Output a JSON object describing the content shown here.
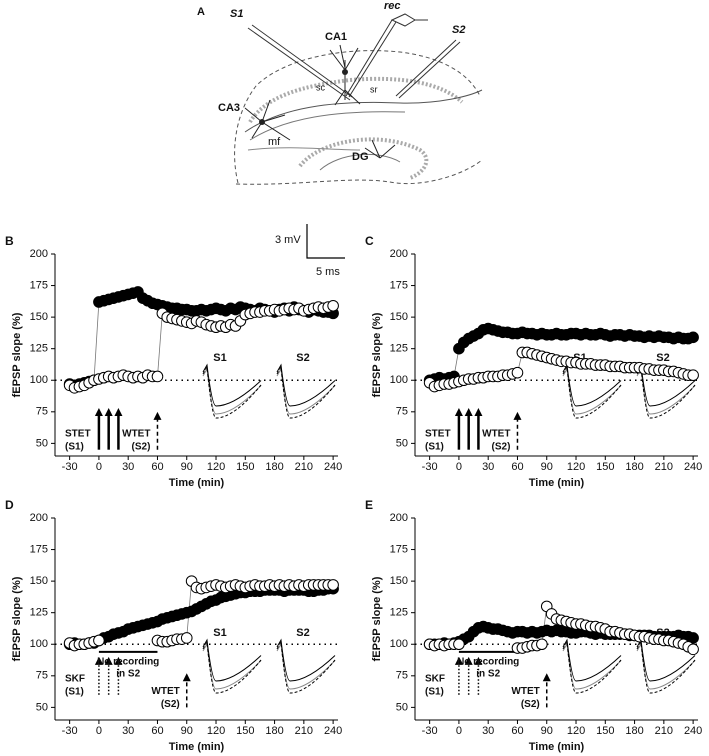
{
  "diagram": {
    "panel_label": "A",
    "labels": {
      "s1": "S1",
      "rec": "rec",
      "s2": "S2",
      "ca1": "CA1",
      "ca3": "CA3",
      "sc": "sc",
      "sr": "sr",
      "mf": "mf",
      "dg": "DG"
    }
  },
  "chart_data": [
    {
      "type": "scatter",
      "panel_label": "B",
      "xlabel": "Time (min)",
      "ylabel": "fEPSP slope (%)",
      "xlim": [
        -45,
        245
      ],
      "ylim": [
        40,
        200
      ],
      "xticks": [
        -30,
        0,
        30,
        60,
        90,
        120,
        150,
        180,
        210,
        240
      ],
      "yticks": [
        50,
        75,
        100,
        125,
        150,
        175,
        200
      ],
      "reference_line": 100,
      "x": [
        -30,
        -25,
        -20,
        -15,
        -10,
        -5,
        0,
        5,
        10,
        15,
        20,
        25,
        30,
        35,
        40,
        45,
        50,
        55,
        60,
        65,
        70,
        75,
        80,
        85,
        90,
        95,
        100,
        105,
        110,
        115,
        120,
        125,
        130,
        135,
        140,
        145,
        150,
        155,
        160,
        165,
        170,
        175,
        180,
        185,
        190,
        195,
        200,
        205,
        210,
        215,
        220,
        225,
        230,
        235,
        240
      ],
      "series": [
        {
          "marker": "filled",
          "color": "#000000",
          "values": [
            97,
            96,
            97,
            98,
            99,
            100,
            162,
            163,
            164,
            165,
            166,
            167,
            168,
            169,
            170,
            165,
            163,
            161,
            160,
            159,
            158,
            157,
            157,
            156,
            156,
            155,
            155,
            156,
            155,
            156,
            157,
            156,
            155,
            157,
            156,
            158,
            157,
            156,
            155,
            157,
            156,
            155,
            154,
            156,
            157,
            155,
            158,
            156,
            155,
            154,
            156,
            155,
            154,
            154,
            153
          ]
        },
        {
          "marker": "open",
          "color": "#000000",
          "values": [
            96,
            94,
            95,
            96,
            98,
            100,
            101,
            102,
            103,
            102,
            103,
            104,
            103,
            102,
            103,
            102,
            104,
            103,
            103,
            153,
            150,
            149,
            148,
            147,
            146,
            145,
            147,
            146,
            144,
            143,
            142,
            143,
            142,
            144,
            143,
            147,
            152,
            153,
            154,
            154,
            155,
            155,
            156,
            155,
            156,
            157,
            156,
            157,
            155,
            156,
            157,
            158,
            157,
            158,
            159
          ]
        }
      ],
      "stim_label": [
        "STET",
        "(S1)"
      ],
      "stim_times": [
        0,
        10,
        20
      ],
      "stim_style": "solid",
      "weak_label": [
        "WTET",
        "(S2)"
      ],
      "weak_time": 60,
      "inset_labels": [
        "S1",
        "S2"
      ],
      "scale_bar": {
        "vertical": "3 mV",
        "horizontal": "5 ms"
      }
    },
    {
      "type": "scatter",
      "panel_label": "C",
      "xlabel": "Time (min)",
      "ylabel": "fEPSP slope (%)",
      "xlim": [
        -45,
        245
      ],
      "ylim": [
        40,
        200
      ],
      "xticks": [
        -30,
        0,
        30,
        60,
        90,
        120,
        150,
        180,
        210,
        240
      ],
      "yticks": [
        50,
        75,
        100,
        125,
        150,
        175,
        200
      ],
      "reference_line": 100,
      "x": [
        -30,
        -25,
        -20,
        -15,
        -10,
        -5,
        0,
        5,
        10,
        15,
        20,
        25,
        30,
        35,
        40,
        45,
        50,
        55,
        60,
        65,
        70,
        75,
        80,
        85,
        90,
        95,
        100,
        105,
        110,
        115,
        120,
        125,
        130,
        135,
        140,
        145,
        150,
        155,
        160,
        165,
        170,
        175,
        180,
        185,
        190,
        195,
        200,
        205,
        210,
        215,
        220,
        225,
        230,
        235,
        240
      ],
      "series": [
        {
          "marker": "filled",
          "color": "#000000",
          "values": [
            100,
            101,
            102,
            101,
            102,
            103,
            125,
            130,
            133,
            135,
            137,
            140,
            141,
            140,
            139,
            138,
            138,
            137,
            137,
            138,
            137,
            137,
            136,
            137,
            136,
            136,
            137,
            136,
            136,
            137,
            137,
            136,
            137,
            136,
            136,
            137,
            136,
            135,
            136,
            136,
            135,
            136,
            135,
            135,
            134,
            135,
            134,
            135,
            134,
            134,
            133,
            134,
            133,
            133,
            134
          ]
        },
        {
          "marker": "open",
          "color": "#000000",
          "values": [
            98,
            95,
            96,
            97,
            97,
            98,
            99,
            100,
            101,
            101,
            102,
            102,
            103,
            103,
            103,
            104,
            104,
            105,
            106,
            122,
            122,
            121,
            120,
            119,
            118,
            117,
            116,
            115,
            115,
            114,
            114,
            113,
            113,
            113,
            112,
            112,
            112,
            111,
            111,
            111,
            110,
            110,
            110,
            110,
            109,
            109,
            108,
            108,
            108,
            107,
            107,
            106,
            105,
            104,
            104
          ]
        }
      ],
      "stim_label": [
        "STET",
        "(S1)"
      ],
      "stim_times": [
        0,
        10,
        20
      ],
      "stim_style": "solid",
      "weak_label": [
        "WTET",
        "(S2)"
      ],
      "weak_time": 60,
      "inset_labels": [
        "S1",
        "S2"
      ]
    },
    {
      "type": "scatter",
      "panel_label": "D",
      "xlabel": "Time (min)",
      "ylabel": "fEPSP slope (%)",
      "xlim": [
        -45,
        245
      ],
      "ylim": [
        40,
        200
      ],
      "xticks": [
        -30,
        0,
        30,
        60,
        90,
        120,
        150,
        180,
        210,
        240
      ],
      "yticks": [
        50,
        75,
        100,
        125,
        150,
        175,
        200
      ],
      "reference_line": 100,
      "x": [
        -30,
        -25,
        -20,
        -15,
        -10,
        -5,
        0,
        5,
        10,
        15,
        20,
        25,
        30,
        35,
        40,
        45,
        50,
        55,
        60,
        65,
        70,
        75,
        80,
        85,
        90,
        95,
        100,
        105,
        110,
        115,
        120,
        125,
        130,
        135,
        140,
        145,
        150,
        155,
        160,
        165,
        170,
        175,
        180,
        185,
        190,
        195,
        200,
        205,
        210,
        215,
        220,
        225,
        230,
        235,
        240
      ],
      "series": [
        {
          "marker": "filled",
          "color": "#000000",
          "values": [
            100,
            101,
            100,
            100,
            101,
            101,
            103,
            105,
            106,
            108,
            109,
            110,
            112,
            113,
            114,
            115,
            116,
            117,
            118,
            120,
            121,
            122,
            123,
            124,
            125,
            126,
            128,
            130,
            132,
            134,
            135,
            137,
            138,
            139,
            140,
            141,
            141,
            142,
            142,
            142,
            143,
            143,
            143,
            143,
            142,
            143,
            143,
            143,
            143,
            142,
            142,
            143,
            143,
            144,
            144
          ]
        },
        {
          "marker": "open",
          "color": "#000000",
          "values": [
            101,
            99,
            100,
            100,
            101,
            102,
            103,
            null,
            null,
            null,
            null,
            null,
            null,
            null,
            null,
            null,
            null,
            null,
            103,
            102,
            102,
            103,
            104,
            104,
            105,
            150,
            145,
            144,
            145,
            146,
            147,
            146,
            145,
            146,
            147,
            146,
            145,
            146,
            147,
            146,
            146,
            147,
            146,
            147,
            146,
            147,
            146,
            147,
            146,
            147,
            147,
            147,
            147,
            147,
            147
          ]
        }
      ],
      "stim_label": [
        "SKF",
        "(S1)"
      ],
      "stim_times": [
        0,
        10,
        20
      ],
      "stim_style": "dotted",
      "weak_label": [
        "WTET",
        "(S2)"
      ],
      "weak_time": 90,
      "inset_labels": [
        "S1",
        "S2"
      ],
      "no_recording_label": [
        "No recording",
        "in S2"
      ],
      "no_recording_range": [
        0,
        60
      ]
    },
    {
      "type": "scatter",
      "panel_label": "E",
      "xlabel": "Time (min)",
      "ylabel": "fEPSP slope (%)",
      "xlim": [
        -45,
        245
      ],
      "ylim": [
        40,
        200
      ],
      "xticks": [
        -30,
        0,
        30,
        60,
        90,
        120,
        150,
        180,
        210,
        240
      ],
      "yticks": [
        50,
        75,
        100,
        125,
        150,
        175,
        200
      ],
      "reference_line": 100,
      "x": [
        -30,
        -25,
        -20,
        -15,
        -10,
        -5,
        0,
        5,
        10,
        15,
        20,
        25,
        30,
        35,
        40,
        45,
        50,
        55,
        60,
        65,
        70,
        75,
        80,
        85,
        90,
        95,
        100,
        105,
        110,
        115,
        120,
        125,
        130,
        135,
        140,
        145,
        150,
        155,
        160,
        165,
        170,
        175,
        180,
        185,
        190,
        195,
        200,
        205,
        210,
        215,
        220,
        225,
        230,
        235,
        240
      ],
      "series": [
        {
          "marker": "filled",
          "color": "#000000",
          "values": [
            100,
            100,
            100,
            101,
            100,
            101,
            102,
            104,
            106,
            110,
            113,
            114,
            113,
            112,
            112,
            111,
            110,
            109,
            110,
            110,
            109,
            110,
            109,
            110,
            111,
            110,
            111,
            110,
            110,
            109,
            109,
            110,
            110,
            109,
            108,
            109,
            108,
            108,
            108,
            108,
            108,
            107,
            107,
            107,
            107,
            107,
            106,
            106,
            106,
            106,
            106,
            107,
            106,
            106,
            105
          ]
        },
        {
          "marker": "open",
          "color": "#000000",
          "values": [
            100,
            99,
            100,
            99,
            100,
            100,
            100,
            null,
            null,
            null,
            null,
            null,
            null,
            null,
            null,
            null,
            null,
            null,
            97,
            97,
            98,
            99,
            99,
            100,
            130,
            124,
            120,
            119,
            118,
            117,
            116,
            116,
            115,
            114,
            114,
            113,
            112,
            110,
            110,
            109,
            108,
            108,
            107,
            106,
            106,
            105,
            104,
            104,
            103,
            103,
            102,
            101,
            100,
            98,
            96
          ]
        }
      ],
      "stim_label": [
        "SKF",
        "(S1)"
      ],
      "stim_times": [
        0,
        10,
        20
      ],
      "stim_style": "dotted",
      "weak_label": [
        "WTET",
        "(S2)"
      ],
      "weak_time": 90,
      "inset_labels": [
        "S1",
        "S2"
      ],
      "no_recording_label": [
        "No recording",
        "in S2"
      ],
      "no_recording_range": [
        0,
        60
      ]
    }
  ]
}
